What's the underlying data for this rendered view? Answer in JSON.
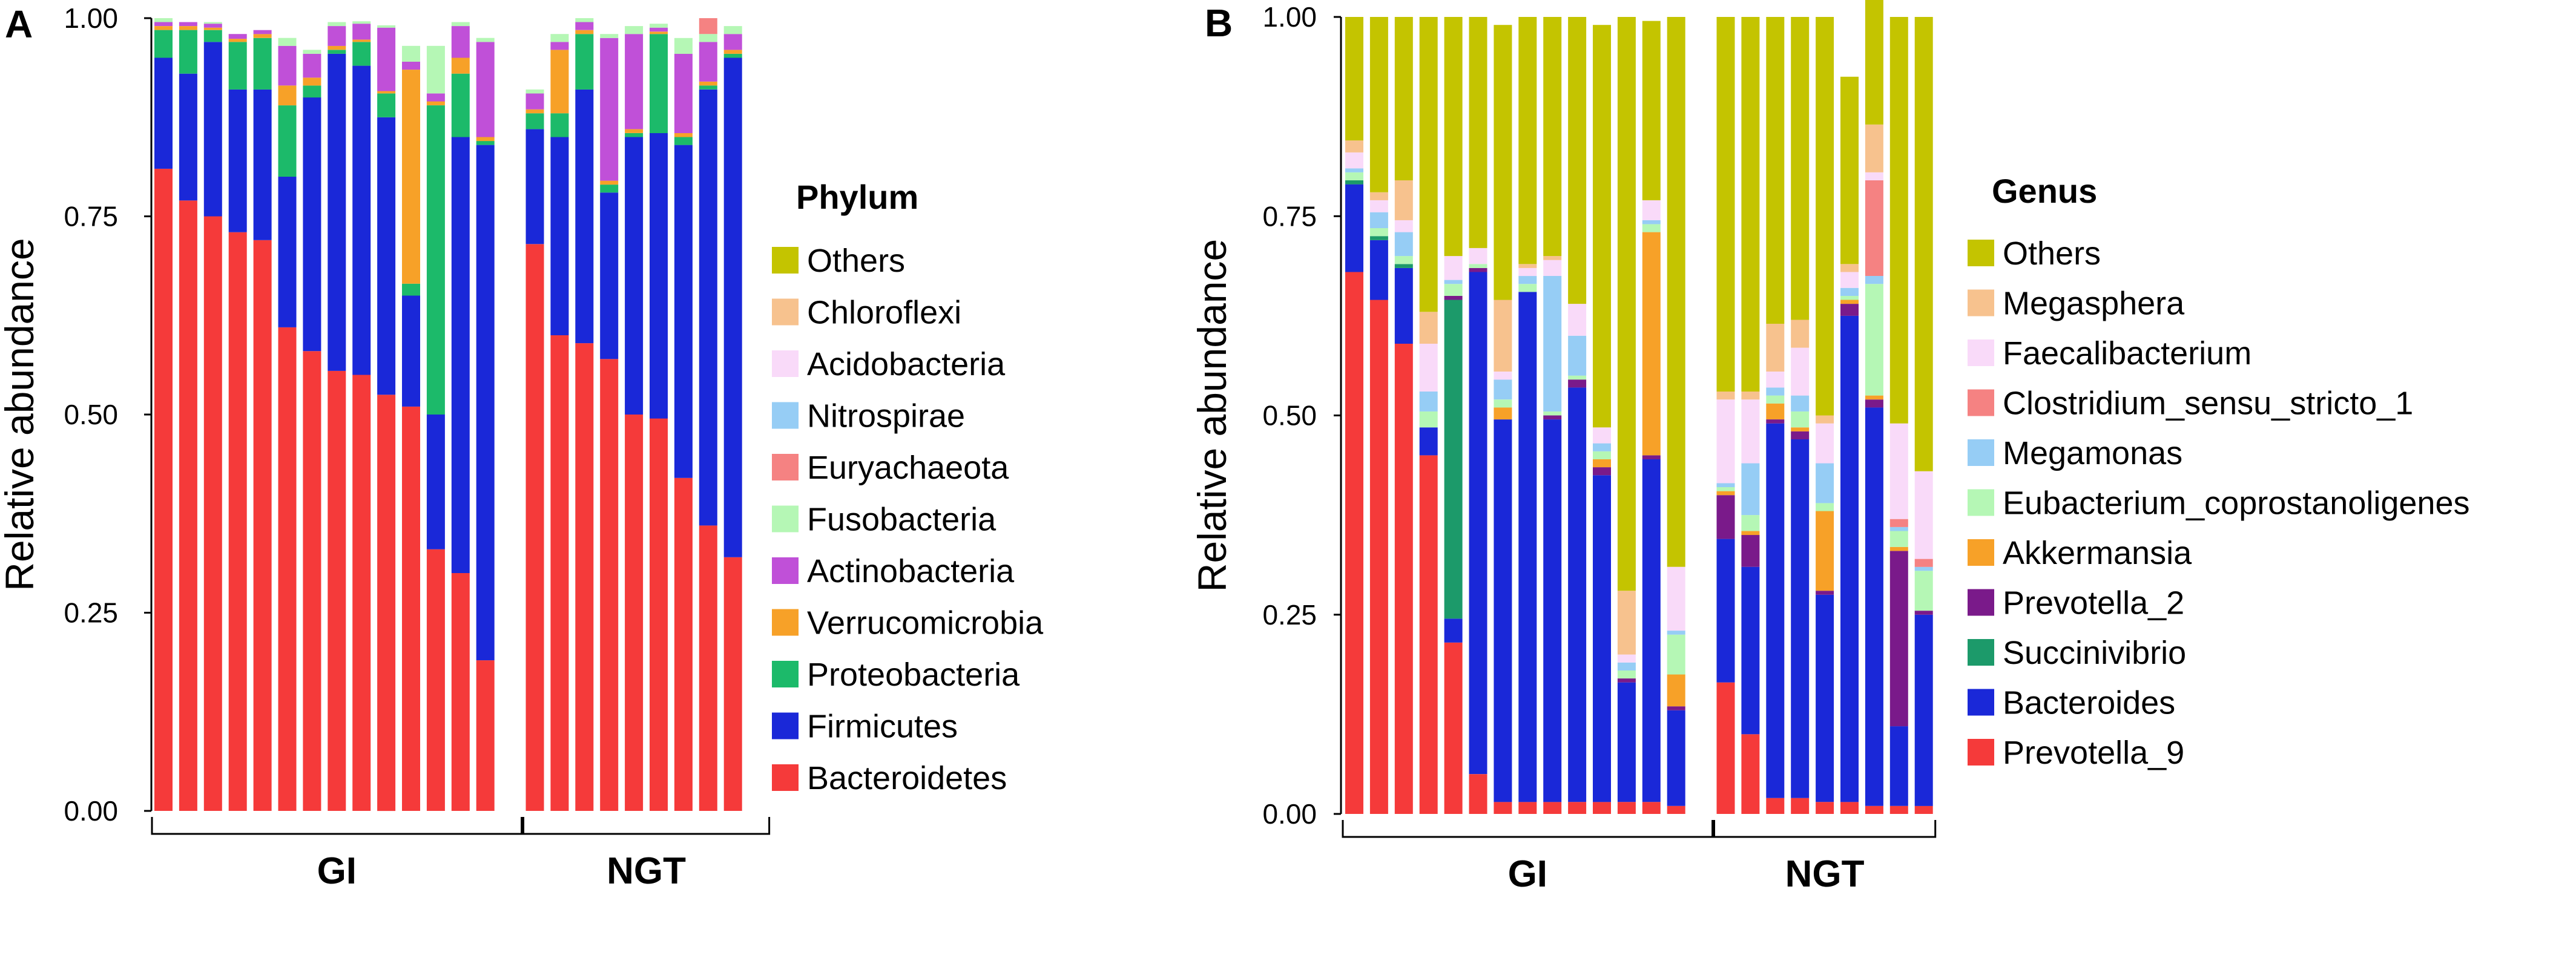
{
  "chart_data": [
    {
      "type": "bar",
      "stacked": true,
      "panel_label": "A",
      "ylabel": "Relative abundance",
      "ylim": [
        0,
        1
      ],
      "yticks": [
        "0.00",
        "0.25",
        "0.50",
        "0.75",
        "1.00"
      ],
      "legend_title": "Phylum",
      "legend_position": "right",
      "groups": [
        {
          "label": "GI",
          "start": 0,
          "end": 14
        },
        {
          "label": "NGT",
          "start": 15,
          "end": 24
        }
      ],
      "series": [
        {
          "name": "Bacteroidetes",
          "color": "#f53a3a",
          "values": [
            0.81,
            0.77,
            0.75,
            0.73,
            0.72,
            0.61,
            0.58,
            0.555,
            0.55,
            0.525,
            0.51,
            0.33,
            0.3,
            0.19,
            0,
            0.715,
            0.6,
            0.59,
            0.57,
            0.5,
            0.495,
            0.42,
            0.36,
            0.32,
            0
          ]
        },
        {
          "name": "Firmicutes",
          "color": "#1a28d8",
          "values": [
            0.14,
            0.16,
            0.22,
            0.18,
            0.19,
            0.19,
            0.32,
            0.4,
            0.39,
            0.35,
            0.14,
            0.17,
            0.55,
            0.65,
            0,
            0.145,
            0.25,
            0.32,
            0.21,
            0.35,
            0.36,
            0.42,
            0.55,
            0.63,
            0
          ]
        },
        {
          "name": "Proteobacteria",
          "color": "#1cba6a",
          "values": [
            0.035,
            0.055,
            0.015,
            0.06,
            0.065,
            0.09,
            0.015,
            0.005,
            0.03,
            0.03,
            0.015,
            0.39,
            0.08,
            0.005,
            0,
            0.02,
            0.03,
            0.07,
            0.01,
            0.005,
            0.125,
            0.01,
            0.005,
            0.005,
            0
          ]
        },
        {
          "name": "Verrucomicrobia",
          "color": "#f7a128",
          "values": [
            0.005,
            0.005,
            0.003,
            0.004,
            0.005,
            0.025,
            0.01,
            0.005,
            0.003,
            0.003,
            0.27,
            0.005,
            0.02,
            0.005,
            0,
            0.005,
            0.08,
            0.005,
            0.005,
            0.005,
            0.003,
            0.005,
            0.005,
            0.005,
            0
          ]
        },
        {
          "name": "Actinobacteria",
          "color": "#c050d8",
          "values": [
            0.005,
            0.005,
            0.005,
            0.006,
            0.005,
            0.05,
            0.03,
            0.025,
            0.02,
            0.08,
            0.01,
            0.01,
            0.04,
            0.12,
            0,
            0.02,
            0.01,
            0.01,
            0.18,
            0.12,
            0.005,
            0.1,
            0.05,
            0.02,
            0
          ]
        },
        {
          "name": "Fusobacteria",
          "color": "#b5f7b5",
          "values": [
            0.005,
            0,
            0.002,
            0,
            0,
            0.01,
            0.005,
            0.005,
            0.003,
            0.003,
            0.02,
            0.06,
            0.005,
            0.005,
            0,
            0.005,
            0.01,
            0.005,
            0.005,
            0.01,
            0.005,
            0.02,
            0.01,
            0.01,
            0
          ]
        },
        {
          "name": "Euryachaeota",
          "color": "#f58282",
          "values": [
            0,
            0,
            0,
            0,
            0,
            0,
            0,
            0,
            0,
            0,
            0,
            0,
            0,
            0,
            0,
            0,
            0,
            0,
            0,
            0,
            0,
            0,
            0.02,
            0,
            0
          ]
        },
        {
          "name": "Nitrospirae",
          "color": "#96cdf5",
          "values": [
            0,
            0,
            0,
            0,
            0,
            0,
            0,
            0,
            0,
            0,
            0,
            0,
            0,
            0,
            0,
            0,
            0,
            0,
            0,
            0,
            0,
            0,
            0,
            0,
            0
          ]
        },
        {
          "name": "Acidobacteria",
          "color": "#f9daf9",
          "values": [
            0,
            0,
            0,
            0,
            0,
            0,
            0,
            0,
            0,
            0,
            0,
            0,
            0,
            0,
            0,
            0,
            0,
            0,
            0,
            0,
            0,
            0,
            0,
            0,
            0
          ]
        },
        {
          "name": "Chloroflexi",
          "color": "#f7c28e",
          "values": [
            0,
            0,
            0,
            0,
            0,
            0,
            0,
            0,
            0,
            0,
            0,
            0,
            0,
            0,
            0,
            0,
            0,
            0,
            0,
            0,
            0,
            0,
            0,
            0,
            0
          ]
        },
        {
          "name": "Others",
          "color": "#c4c400",
          "values": [
            0,
            0,
            0,
            0,
            0,
            0,
            0,
            0,
            0,
            0,
            0,
            0,
            0,
            0,
            0,
            0,
            0,
            0,
            0,
            0,
            0,
            0,
            0,
            0,
            0
          ]
        }
      ]
    },
    {
      "type": "bar",
      "stacked": true,
      "panel_label": "B",
      "ylabel": "Relative abundance",
      "ylim": [
        0,
        1
      ],
      "yticks": [
        "0.00",
        "0.25",
        "0.50",
        "0.75",
        "1.00"
      ],
      "legend_title": "Genus",
      "legend_position": "right",
      "groups": [
        {
          "label": "GI",
          "start": 0,
          "end": 14
        },
        {
          "label": "NGT",
          "start": 15,
          "end": 23
        }
      ],
      "series": [
        {
          "name": "Prevotella_9",
          "color": "#f53a3a",
          "values": [
            0.68,
            0.645,
            0.59,
            0.45,
            0.215,
            0.05,
            0.015,
            0.015,
            0.015,
            0.015,
            0.015,
            0.015,
            0.015,
            0.01,
            0,
            0.165,
            0.1,
            0.02,
            0.02,
            0.015,
            0.015,
            0.01,
            0.01,
            0.01
          ]
        },
        {
          "name": "Bacteroides",
          "color": "#1a28d8",
          "values": [
            0.11,
            0.075,
            0.095,
            0.035,
            0.03,
            0.63,
            0.48,
            0.64,
            0.48,
            0.52,
            0.41,
            0.15,
            0.43,
            0.12,
            0,
            0.18,
            0.21,
            0.47,
            0.45,
            0.26,
            0.61,
            0.5,
            0.1,
            0.24
          ]
        },
        {
          "name": "Succinivibrio",
          "color": "#1c9a6a",
          "values": [
            0.005,
            0.005,
            0.005,
            0,
            0.4,
            0,
            0,
            0,
            0,
            0,
            0,
            0,
            0,
            0,
            0,
            0,
            0,
            0,
            0,
            0,
            0,
            0,
            0,
            0
          ]
        },
        {
          "name": "Prevotella_2",
          "color": "#7a1a8a",
          "values": [
            0,
            0,
            0,
            0,
            0.005,
            0.005,
            0,
            0,
            0.005,
            0.01,
            0.01,
            0.005,
            0.005,
            0.005,
            0,
            0.055,
            0.04,
            0.005,
            0.01,
            0.005,
            0.015,
            0.01,
            0.22,
            0.005
          ]
        },
        {
          "name": "Akkermansia",
          "color": "#f7a128",
          "values": [
            0,
            0,
            0,
            0,
            0,
            0,
            0.015,
            0,
            0,
            0,
            0.01,
            0,
            0.28,
            0.04,
            0,
            0.005,
            0.005,
            0.02,
            0.005,
            0.1,
            0.005,
            0.005,
            0.005,
            0
          ]
        },
        {
          "name": "Eubacterium_coprostanoligenes",
          "color": "#b5f7b5",
          "values": [
            0.01,
            0.01,
            0.01,
            0.02,
            0.015,
            0.005,
            0.01,
            0.01,
            0.005,
            0.005,
            0.01,
            0.01,
            0.01,
            0.05,
            0,
            0.005,
            0.02,
            0.01,
            0.02,
            0.01,
            0.005,
            0.14,
            0.02,
            0.05
          ]
        },
        {
          "name": "Megamonas",
          "color": "#96cdf5",
          "values": [
            0.005,
            0.02,
            0.03,
            0.025,
            0.005,
            0,
            0.025,
            0.01,
            0.17,
            0.05,
            0.01,
            0.01,
            0.005,
            0.005,
            0,
            0.005,
            0.065,
            0.01,
            0.02,
            0.05,
            0.01,
            0.01,
            0.005,
            0.005
          ]
        },
        {
          "name": "Clostridium_sensu_stricto_1",
          "color": "#f58282",
          "values": [
            0,
            0,
            0,
            0,
            0,
            0,
            0,
            0,
            0,
            0,
            0,
            0,
            0,
            0,
            0,
            0,
            0,
            0,
            0,
            0,
            0,
            0.12,
            0.01,
            0.01
          ]
        },
        {
          "name": "Faecalibacterium",
          "color": "#f9daf9",
          "values": [
            0.02,
            0.015,
            0.015,
            0.06,
            0.03,
            0.02,
            0.01,
            0.01,
            0.02,
            0.04,
            0.02,
            0.01,
            0.025,
            0.08,
            0,
            0.105,
            0.08,
            0.02,
            0.06,
            0.05,
            0.02,
            0.01,
            0.12,
            0.11
          ]
        },
        {
          "name": "Megasphera",
          "color": "#f7c28e",
          "values": [
            0.015,
            0.01,
            0.05,
            0.04,
            0,
            0,
            0.09,
            0.005,
            0.005,
            0,
            0,
            0.08,
            0,
            0,
            0,
            0.01,
            0.01,
            0.06,
            0.035,
            0.01,
            0.01,
            0.06,
            0,
            0
          ]
        },
        {
          "name": "Others",
          "color": "#c4c400",
          "values": [
            0.155,
            0.22,
            0.205,
            0.37,
            0.3,
            0.29,
            0.345,
            0.31,
            0.3,
            0.36,
            0.505,
            0.72,
            0.225,
            0.69,
            0,
            0.47,
            0.47,
            0.385,
            0.38,
            0.5,
            0.235,
            0.255,
            0.51,
            0.57
          ]
        }
      ]
    }
  ]
}
